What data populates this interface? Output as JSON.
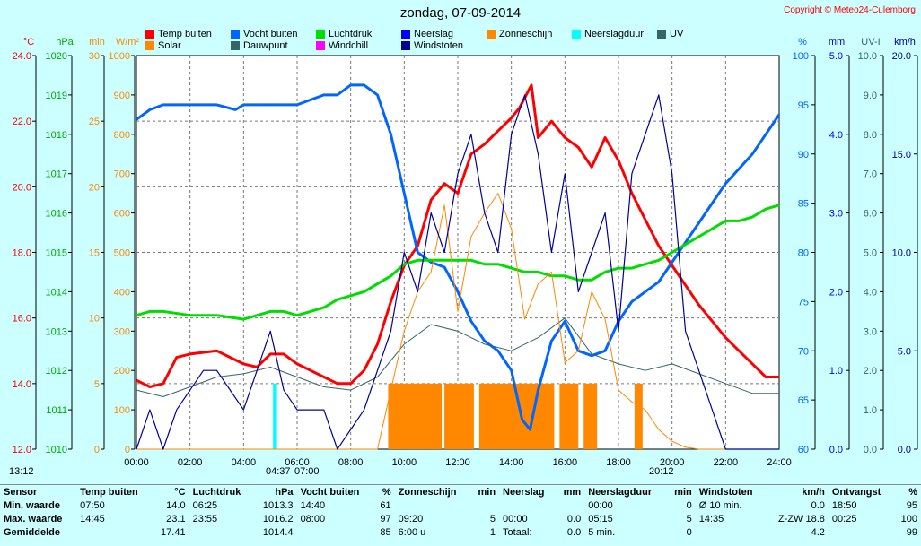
{
  "title": "zondag, 07-09-2014",
  "copyright": "Copyright © Meteo24-Culemborg",
  "legend": [
    {
      "label": "Temp buiten",
      "color": "#ff0000"
    },
    {
      "label": "Vocht buiten",
      "color": "#0066ff"
    },
    {
      "label": "Luchtdruk",
      "color": "#00dd00"
    },
    {
      "label": "Neerslag",
      "color": "#0000ff"
    },
    {
      "label": "Zonneschijn",
      "color": "#ff8800"
    },
    {
      "label": "Neerslagduur",
      "color": "#00ffff"
    },
    {
      "label": "UV",
      "color": "#336666"
    },
    {
      "label": "Solar",
      "color": "#ff8800"
    },
    {
      "label": "Dauwpunt",
      "color": "#336666"
    },
    {
      "label": "Windchill",
      "color": "#ff00ff"
    },
    {
      "label": "Windstoten",
      "color": "#000099"
    }
  ],
  "sun": {
    "start": "13:12",
    "rise": "04:37",
    "sunrise": "07:00",
    "sunset": "20:12"
  },
  "chart_data": {
    "type": "line",
    "x_unit": "hours",
    "xlim": [
      0,
      24
    ],
    "x_ticks": [
      "00:00",
      "02:00",
      "04:00",
      "06:00",
      "08:00",
      "10:00",
      "12:00",
      "14:00",
      "16:00",
      "18:00",
      "20:00",
      "22:00",
      "24:00"
    ],
    "axes": [
      {
        "label": "°C",
        "color": "#ff0000",
        "ticks": [
          "12.0",
          "14.0",
          "16.0",
          "18.0",
          "20.0",
          "22.0",
          "24.0"
        ],
        "range": [
          12,
          24
        ]
      },
      {
        "label": "hPa",
        "color": "#00aa00",
        "ticks": [
          "1010",
          "1011",
          "1012",
          "1013",
          "1014",
          "1015",
          "1016",
          "1017",
          "1018",
          "1019",
          "1020"
        ],
        "range": [
          1010,
          1020
        ]
      },
      {
        "label": "min",
        "color": "#ff8800",
        "ticks": [
          "0",
          "5",
          "10",
          "15",
          "20",
          "25",
          "30"
        ],
        "range": [
          0,
          30
        ]
      },
      {
        "label": "W/m²",
        "color": "#ff8800",
        "ticks": [
          "0",
          "100",
          "200",
          "300",
          "400",
          "500",
          "600",
          "700",
          "800",
          "900",
          "1000"
        ],
        "range": [
          0,
          1000
        ]
      },
      {
        "label": "%",
        "color": "#0066ff",
        "ticks": [
          "60",
          "65",
          "70",
          "75",
          "80",
          "85",
          "90",
          "95",
          "100"
        ],
        "range": [
          60,
          100
        ]
      },
      {
        "label": "mm",
        "color": "#0000ff",
        "ticks": [
          "0.0",
          "1.0",
          "2.0",
          "3.0",
          "4.0",
          "5.0"
        ],
        "range": [
          0,
          5
        ]
      },
      {
        "label": "UV-I",
        "color": "#336666",
        "ticks": [
          "0.0",
          "1.0",
          "2.0",
          "3.0",
          "4.0",
          "5.0",
          "6.0",
          "7.0",
          "8.0",
          "9.0",
          "10.0"
        ],
        "range": [
          0,
          10
        ]
      },
      {
        "label": "km/h",
        "color": "#000099",
        "ticks": [
          "0.0",
          "5.0",
          "10.0",
          "15.0",
          "20.0"
        ],
        "range": [
          0,
          20
        ]
      }
    ],
    "series": [
      {
        "name": "Temp buiten",
        "color": "#ff0000",
        "axis": 0,
        "x": [
          0,
          0.5,
          1,
          1.5,
          2,
          3,
          3.5,
          4,
          4.5,
          5,
          5.5,
          6,
          6.5,
          7,
          7.5,
          8,
          8.5,
          9,
          9.5,
          10,
          10.5,
          11,
          11.5,
          12,
          12.5,
          13,
          13.5,
          14,
          14.3,
          14.75,
          15,
          15.5,
          16,
          16.5,
          17,
          17.5,
          18,
          18.5,
          19,
          19.5,
          20,
          20.5,
          21,
          21.5,
          22,
          22.5,
          23,
          23.5,
          24
        ],
        "y": [
          14.1,
          13.9,
          14.0,
          14.8,
          14.9,
          15.0,
          14.8,
          14.6,
          14.5,
          14.9,
          14.9,
          14.6,
          14.4,
          14.2,
          14.0,
          14.0,
          14.4,
          15.2,
          16.5,
          17.6,
          18.2,
          19.6,
          20.1,
          19.8,
          21.0,
          21.3,
          21.7,
          22.1,
          22.4,
          23.1,
          21.5,
          22.0,
          21.5,
          21.2,
          20.6,
          21.5,
          20.8,
          19.8,
          19.0,
          18.2,
          17.6,
          17.0,
          16.4,
          15.9,
          15.4,
          15.0,
          14.6,
          14.2,
          14.2
        ]
      },
      {
        "name": "Vocht buiten",
        "color": "#0066ff",
        "axis": 4,
        "x": [
          0,
          0.5,
          1,
          2,
          3,
          3.7,
          4,
          5,
          6,
          6.5,
          7,
          7.5,
          8,
          8.5,
          9,
          9.5,
          10,
          10.5,
          11,
          11.5,
          12,
          12.5,
          13,
          13.5,
          14,
          14.4,
          14.7,
          15,
          15.5,
          16,
          16.5,
          17,
          17.5,
          18,
          18.5,
          19,
          19.5,
          20,
          20.5,
          21,
          21.5,
          22,
          22.5,
          23,
          23.5,
          24
        ],
        "y": [
          93.5,
          94.5,
          95,
          95,
          95,
          94.5,
          95,
          95,
          95,
          95.5,
          96,
          96,
          97,
          97,
          96,
          92,
          86,
          80,
          79,
          78.5,
          76,
          73,
          71,
          70,
          68,
          63,
          62,
          66,
          71,
          73,
          70,
          69.5,
          70,
          73,
          75,
          76,
          77,
          79,
          81,
          83,
          85,
          87,
          88.5,
          90,
          92,
          94
        ]
      },
      {
        "name": "Luchtdruk",
        "color": "#00dd00",
        "axis": 1,
        "x": [
          0,
          0.5,
          1,
          2,
          3,
          4,
          5,
          5.5,
          6,
          6.5,
          7,
          7.5,
          8,
          8.5,
          9,
          9.5,
          10,
          10.5,
          11,
          11.5,
          12,
          12.5,
          13,
          13.5,
          14,
          14.5,
          15,
          15.5,
          16,
          16.5,
          17,
          17.5,
          18,
          18.5,
          19,
          19.5,
          20,
          20.5,
          21,
          21.5,
          22,
          22.5,
          23,
          23.5,
          24
        ],
        "y": [
          1013.4,
          1013.5,
          1013.5,
          1013.4,
          1013.4,
          1013.3,
          1013.5,
          1013.5,
          1013.4,
          1013.5,
          1013.6,
          1013.8,
          1013.9,
          1014.0,
          1014.2,
          1014.4,
          1014.7,
          1014.8,
          1014.8,
          1014.8,
          1014.8,
          1014.8,
          1014.7,
          1014.7,
          1014.6,
          1014.5,
          1014.5,
          1014.4,
          1014.4,
          1014.3,
          1014.3,
          1014.5,
          1014.6,
          1014.6,
          1014.7,
          1014.8,
          1015.0,
          1015.2,
          1015.4,
          1015.6,
          1015.8,
          1015.8,
          1015.9,
          1016.1,
          1016.2
        ]
      },
      {
        "name": "Dauwpunt",
        "color": "#336666",
        "axis": 0,
        "x": [
          0,
          1,
          2,
          3,
          4,
          5,
          6,
          7,
          8,
          9,
          10,
          11,
          12,
          13,
          14,
          15,
          16,
          17,
          18,
          19,
          20,
          21,
          22,
          23,
          24
        ],
        "y": [
          13.8,
          13.6,
          13.9,
          14.2,
          14.3,
          14.5,
          14.2,
          13.9,
          13.8,
          14.2,
          15.2,
          15.8,
          15.6,
          15.2,
          15.0,
          15.4,
          16.0,
          14.9,
          14.6,
          14.4,
          14.6,
          14.3,
          14.0,
          13.7,
          13.7
        ]
      },
      {
        "name": "Solar",
        "color": "#ff8800",
        "axis": 3,
        "x": [
          0,
          9,
          9.5,
          10,
          10.5,
          11,
          11.5,
          12,
          12.5,
          13,
          13.5,
          14,
          14.5,
          15,
          15.5,
          16,
          16.5,
          17,
          17.5,
          18,
          18.5,
          19,
          19.5,
          20,
          20.5,
          21,
          24
        ],
        "y": [
          0,
          0,
          150,
          300,
          400,
          450,
          620,
          350,
          540,
          600,
          650,
          560,
          330,
          420,
          450,
          220,
          250,
          400,
          330,
          150,
          120,
          100,
          50,
          20,
          5,
          0,
          0
        ]
      },
      {
        "name": "Windstoten",
        "color": "#000099",
        "axis": 7,
        "x": [
          0,
          0.5,
          1,
          1.5,
          2,
          2.5,
          3,
          3.5,
          4,
          4.5,
          5,
          5.5,
          6,
          6.5,
          7,
          7.5,
          8,
          8.5,
          9,
          9.5,
          10,
          10.5,
          11,
          11.5,
          12,
          12.5,
          13,
          13.5,
          14,
          14.5,
          15,
          15.5,
          16,
          16.5,
          17,
          17.5,
          18,
          18.5,
          19,
          19.5,
          20,
          20.5,
          21,
          21.5,
          22,
          22.5,
          23,
          23.5,
          24
        ],
        "y": [
          0,
          2,
          0,
          2,
          3,
          4,
          4,
          3,
          2,
          4,
          6,
          3,
          2,
          2,
          2,
          0,
          1,
          2,
          4,
          6,
          10,
          8,
          12,
          10,
          14,
          16,
          12,
          10,
          16,
          18,
          15,
          10,
          14,
          8,
          10,
          12,
          6,
          14,
          16,
          18,
          14,
          6,
          4,
          2,
          0,
          0,
          0,
          0,
          0
        ]
      }
    ],
    "bars": [
      {
        "name": "Zonneschijn",
        "color": "#ff8800",
        "axis": 2,
        "x_start": [
          9.4,
          11.5,
          12.8,
          15.8,
          16.7,
          18.6
        ],
        "x_end": [
          11.4,
          12.6,
          15.6,
          16.5,
          17.2,
          18.9
        ],
        "value": [
          5,
          5,
          5,
          5,
          5,
          5
        ]
      },
      {
        "name": "Neerslagduur",
        "color": "#00ffff",
        "axis": 2,
        "x_start": [
          5.1
        ],
        "x_end": [
          5.25
        ],
        "value": [
          5
        ]
      }
    ]
  },
  "stats": {
    "headers": [
      "Sensor",
      "Temp buiten",
      "°C",
      "Luchtdruk",
      "hPa",
      "Vocht buiten",
      "%",
      "Zonneschijn",
      "min",
      "Neerslag",
      "mm",
      "Neerslagduur",
      "min",
      "Windstoten",
      "km/h",
      "Ontvangst",
      "%"
    ],
    "rows": [
      [
        "Min. waarde",
        "07:50",
        "14.0",
        "06:25",
        "1013.3",
        "14:40",
        "61",
        "",
        "",
        "",
        "",
        "00:00",
        "0",
        "Ø 10 min.",
        "0.0",
        "18:50",
        "95"
      ],
      [
        "Max. waarde",
        "14:45",
        "23.1",
        "23:55",
        "1016.2",
        "08:00",
        "97",
        "09:20",
        "5",
        "00:00",
        "0.0",
        "05:15",
        "5",
        "14:35",
        "Z-ZW 18.8",
        "00:25",
        "100"
      ],
      [
        "Gemiddelde",
        "",
        "17.41",
        "",
        "1014.4",
        "",
        "85",
        "6:00 u",
        "1",
        "Totaal:",
        "0.0",
        "5 min.",
        "0",
        "",
        "4.2",
        "",
        "99"
      ]
    ]
  }
}
